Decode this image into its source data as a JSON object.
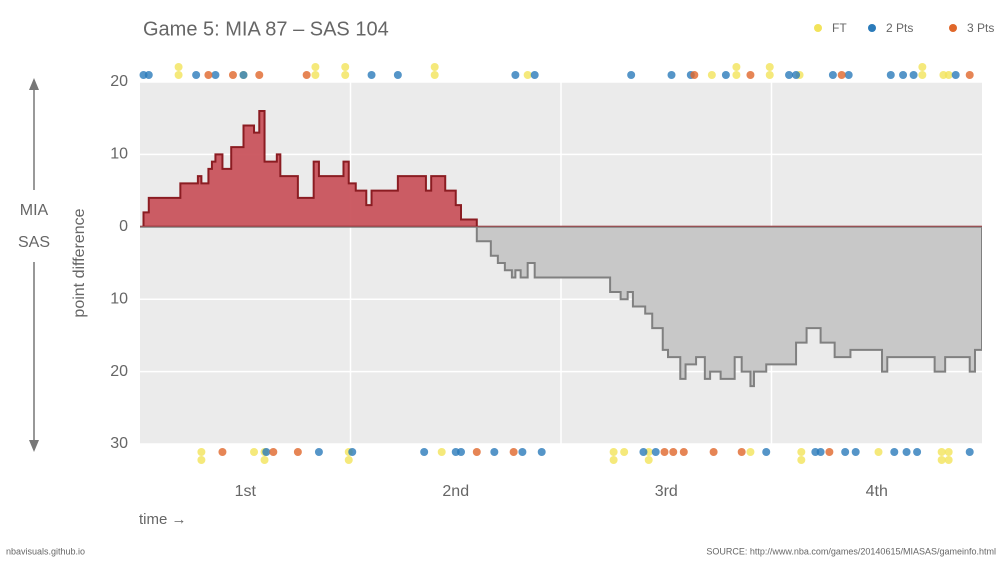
{
  "chart_data": {
    "type": "step-area",
    "title": "Game 5: MIA 87  –  SAS 104",
    "team_top": "MIA",
    "team_bottom": "SAS",
    "y_label": "point difference",
    "x_label": "time →",
    "footer_left": "nbavisuals.github.io",
    "source": "SOURCE: http://www.nba.com/games/20140615/MIASAS/gameinfo.html",
    "xlim": [
      0,
      48
    ],
    "ylim": [
      -30,
      20
    ],
    "xticks": [
      {
        "value": 6,
        "label": "1st"
      },
      {
        "value": 18,
        "label": "2nd"
      },
      {
        "value": 30,
        "label": "3rd"
      },
      {
        "value": 42,
        "label": "4th"
      }
    ],
    "xgrid": [
      12,
      24,
      36
    ],
    "yticks": [
      {
        "value": -30,
        "label": "30"
      },
      {
        "value": -20,
        "label": "20"
      },
      {
        "value": -10,
        "label": "10"
      },
      0,
      10,
      20
    ],
    "grid": true,
    "positive_color": "#c9545d",
    "negative_color": "#c8c8c8",
    "x": [
      0,
      0.2,
      0.5,
      2.3,
      3.3,
      3.5,
      3.9,
      4.1,
      4.3,
      4.7,
      5.2,
      5.9,
      6.5,
      6.8,
      7.1,
      7.8,
      8.0,
      9.0,
      9.9,
      10.2,
      11.6,
      11.9,
      12.3,
      12.9,
      13.2,
      14.7,
      16.3,
      16.6,
      17.4,
      18.0,
      18.3,
      19.2,
      20.0,
      20.4,
      20.8,
      21.2,
      21.4,
      21.7,
      22.1,
      22.5,
      26.8,
      27.4,
      27.8,
      28.1,
      28.8,
      29.2,
      29.8,
      30.1,
      30.8,
      31.1,
      31.7,
      32.2,
      32.5,
      33.1,
      33.9,
      34.3,
      34.8,
      35.0,
      35.7,
      37.4,
      38.0,
      38.8,
      39.6,
      40.5,
      42.3,
      42.6,
      45.3,
      45.9,
      47.3,
      47.6
    ],
    "values": [
      0,
      2,
      4,
      6,
      7,
      6,
      8,
      9,
      10,
      8,
      11,
      14,
      13,
      16,
      9,
      10,
      7,
      4,
      9,
      7,
      9,
      6,
      5,
      3,
      5,
      7,
      5,
      7,
      5,
      3,
      1,
      -2,
      -4,
      -5,
      -6,
      -7,
      -6,
      -7,
      -5,
      -7,
      -9,
      -10,
      -9,
      -11,
      -12,
      -14,
      -17,
      -18,
      -21,
      -19,
      -18,
      -21,
      -20,
      -21,
      -18,
      -20,
      -22,
      -20,
      -19,
      -16,
      -14,
      -16,
      -18,
      -17,
      -20,
      -18,
      -20,
      -18,
      -20,
      -17
    ],
    "scoring": [
      {
        "name": "FT",
        "color": "#f2e35a",
        "MIA": [
          2.2,
          2.2,
          5.9,
          10.0,
          10.0,
          11.7,
          11.7,
          16.8,
          16.8,
          22.1,
          32.6,
          34.0,
          34.0,
          35.9,
          35.9,
          37.6,
          44.6,
          44.6,
          45.8,
          46.1
        ],
        "SAS": [
          3.5,
          3.5,
          6.5,
          7.1,
          7.1,
          11.9,
          11.9,
          17.2,
          27.0,
          27.0,
          27.6,
          29.0,
          29.0,
          34.8,
          37.7,
          37.7,
          42.1,
          45.7,
          45.7,
          46.1,
          46.1
        ]
      },
      {
        "name": "2 Pts",
        "color": "#2b7bba",
        "MIA": [
          0.2,
          0.5,
          3.2,
          4.3,
          5.9,
          13.2,
          14.7,
          21.4,
          22.5,
          28.0,
          30.3,
          31.4,
          33.4,
          37.0,
          37.4,
          39.5,
          40.4,
          42.8,
          43.5,
          44.1,
          46.5
        ],
        "SAS": [
          7.2,
          10.2,
          12.1,
          16.2,
          18.0,
          18.3,
          20.2,
          21.8,
          22.9,
          28.7,
          29.4,
          35.7,
          38.5,
          38.8,
          40.2,
          40.8,
          43.0,
          43.7,
          44.3,
          47.3
        ]
      },
      {
        "name": "3 Pts",
        "color": "#e0672a",
        "MIA": [
          3.9,
          5.3,
          6.8,
          9.5,
          31.6,
          34.8,
          40.0,
          47.3
        ],
        "SAS": [
          4.7,
          7.6,
          9.0,
          19.2,
          21.3,
          29.9,
          30.4,
          31.0,
          32.7,
          34.3,
          39.3
        ]
      }
    ]
  }
}
